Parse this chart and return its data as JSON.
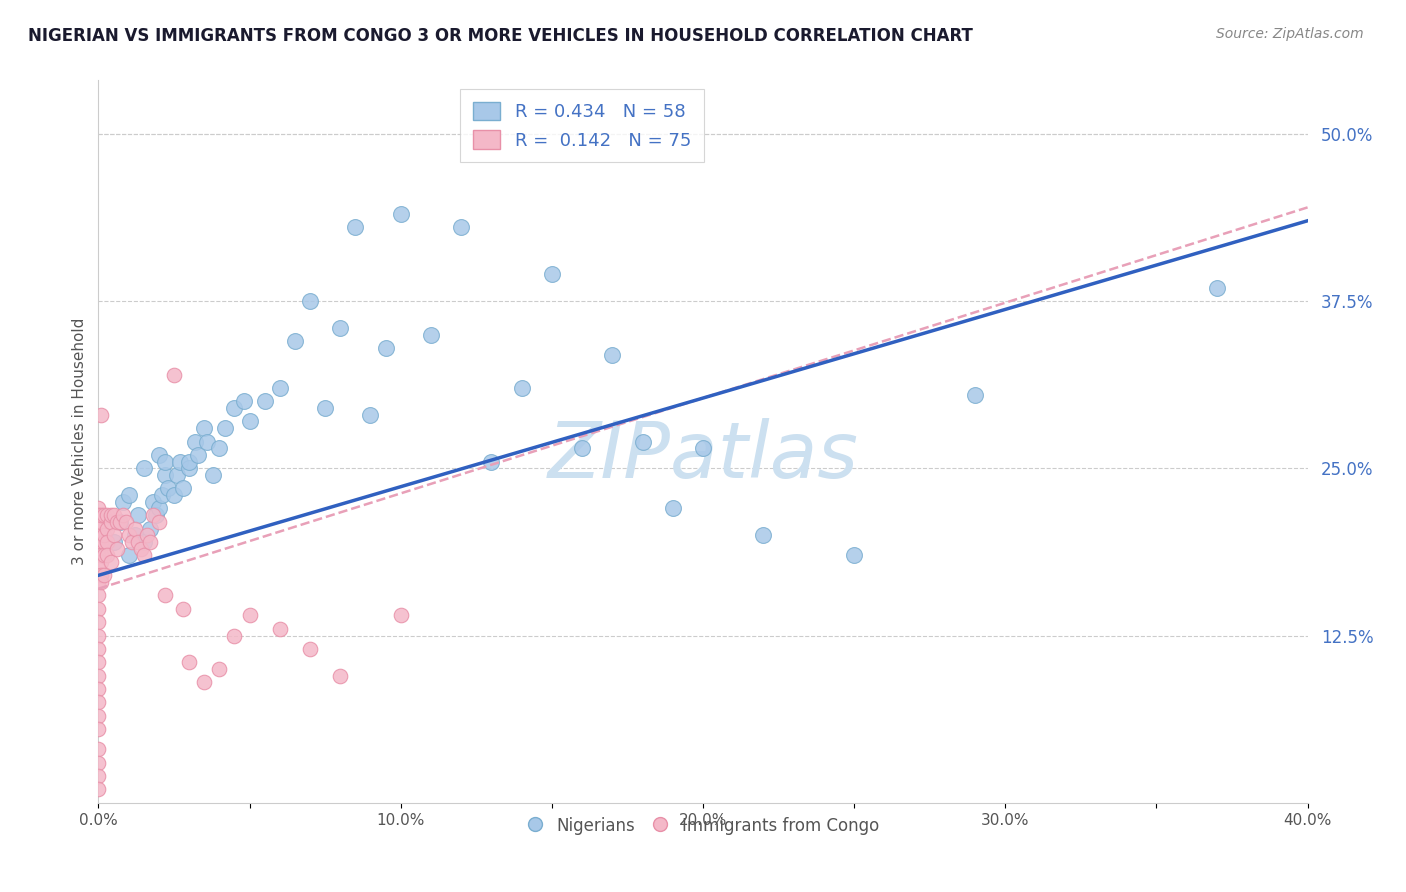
{
  "title": "NIGERIAN VS IMMIGRANTS FROM CONGO 3 OR MORE VEHICLES IN HOUSEHOLD CORRELATION CHART",
  "source": "Source: ZipAtlas.com",
  "ylabel": "3 or more Vehicles in Household",
  "xlim": [
    0.0,
    0.4
  ],
  "ylim": [
    0.0,
    0.54
  ],
  "xtick_labels": [
    "0.0%",
    "",
    "10.0%",
    "",
    "20.0%",
    "",
    "30.0%",
    "",
    "40.0%"
  ],
  "xtick_vals": [
    0.0,
    0.05,
    0.1,
    0.15,
    0.2,
    0.25,
    0.3,
    0.35,
    0.4
  ],
  "ytick_labels_right": [
    "12.5%",
    "25.0%",
    "37.5%",
    "50.0%"
  ],
  "ytick_vals_right": [
    0.125,
    0.25,
    0.375,
    0.5
  ],
  "hlines": [
    0.125,
    0.25,
    0.375,
    0.5
  ],
  "R_nigerian": 0.434,
  "N_nigerian": 58,
  "R_congo": 0.142,
  "N_congo": 75,
  "nigerian_color": "#a8c8e8",
  "nigerian_edge": "#7aaed0",
  "congo_color": "#f4b8c8",
  "congo_edge": "#e890a8",
  "trend_nigerian_color": "#3060c0",
  "trend_congo_color": "#e8a0b8",
  "watermark": "ZIPatlas",
  "watermark_color": "#cce0f0",
  "nig_trend_x0": 0.0,
  "nig_trend_y0": 0.17,
  "nig_trend_x1": 0.4,
  "nig_trend_y1": 0.435,
  "con_trend_x0": 0.0,
  "con_trend_y0": 0.16,
  "con_trend_x1": 0.4,
  "con_trend_y1": 0.445,
  "nigerian_x": [
    0.005,
    0.007,
    0.008,
    0.01,
    0.01,
    0.012,
    0.013,
    0.015,
    0.015,
    0.017,
    0.018,
    0.019,
    0.02,
    0.02,
    0.021,
    0.022,
    0.022,
    0.023,
    0.025,
    0.026,
    0.027,
    0.028,
    0.03,
    0.03,
    0.032,
    0.033,
    0.035,
    0.036,
    0.038,
    0.04,
    0.042,
    0.045,
    0.048,
    0.05,
    0.055,
    0.06,
    0.065,
    0.07,
    0.075,
    0.08,
    0.085,
    0.09,
    0.095,
    0.1,
    0.11,
    0.12,
    0.13,
    0.14,
    0.15,
    0.16,
    0.17,
    0.18,
    0.19,
    0.2,
    0.22,
    0.25,
    0.29,
    0.37
  ],
  "nigerian_y": [
    0.195,
    0.21,
    0.225,
    0.185,
    0.23,
    0.2,
    0.215,
    0.195,
    0.25,
    0.205,
    0.225,
    0.215,
    0.26,
    0.22,
    0.23,
    0.245,
    0.255,
    0.235,
    0.23,
    0.245,
    0.255,
    0.235,
    0.25,
    0.255,
    0.27,
    0.26,
    0.28,
    0.27,
    0.245,
    0.265,
    0.28,
    0.295,
    0.3,
    0.285,
    0.3,
    0.31,
    0.345,
    0.375,
    0.295,
    0.355,
    0.43,
    0.29,
    0.34,
    0.44,
    0.35,
    0.43,
    0.255,
    0.31,
    0.395,
    0.265,
    0.335,
    0.27,
    0.22,
    0.265,
    0.2,
    0.185,
    0.305,
    0.385
  ],
  "congo_x": [
    0.0,
    0.0,
    0.0,
    0.0,
    0.0,
    0.0,
    0.0,
    0.0,
    0.0,
    0.0,
    0.0,
    0.0,
    0.0,
    0.0,
    0.0,
    0.0,
    0.0,
    0.0,
    0.0,
    0.0,
    0.0,
    0.0,
    0.0,
    0.0,
    0.0,
    0.001,
    0.001,
    0.001,
    0.001,
    0.001,
    0.001,
    0.001,
    0.001,
    0.001,
    0.002,
    0.002,
    0.002,
    0.002,
    0.002,
    0.003,
    0.003,
    0.003,
    0.003,
    0.004,
    0.004,
    0.004,
    0.005,
    0.005,
    0.006,
    0.006,
    0.007,
    0.008,
    0.009,
    0.01,
    0.011,
    0.012,
    0.013,
    0.014,
    0.015,
    0.016,
    0.017,
    0.018,
    0.02,
    0.022,
    0.025,
    0.028,
    0.03,
    0.035,
    0.04,
    0.045,
    0.05,
    0.06,
    0.07,
    0.08,
    0.1
  ],
  "congo_y": [
    0.195,
    0.21,
    0.22,
    0.215,
    0.205,
    0.2,
    0.19,
    0.185,
    0.175,
    0.165,
    0.155,
    0.145,
    0.135,
    0.125,
    0.115,
    0.105,
    0.095,
    0.085,
    0.075,
    0.065,
    0.055,
    0.04,
    0.03,
    0.02,
    0.01,
    0.195,
    0.2,
    0.21,
    0.215,
    0.185,
    0.18,
    0.17,
    0.165,
    0.29,
    0.195,
    0.215,
    0.2,
    0.185,
    0.17,
    0.205,
    0.215,
    0.195,
    0.185,
    0.21,
    0.215,
    0.18,
    0.215,
    0.2,
    0.19,
    0.21,
    0.21,
    0.215,
    0.21,
    0.2,
    0.195,
    0.205,
    0.195,
    0.19,
    0.185,
    0.2,
    0.195,
    0.215,
    0.21,
    0.155,
    0.32,
    0.145,
    0.105,
    0.09,
    0.1,
    0.125,
    0.14,
    0.13,
    0.115,
    0.095,
    0.14
  ]
}
